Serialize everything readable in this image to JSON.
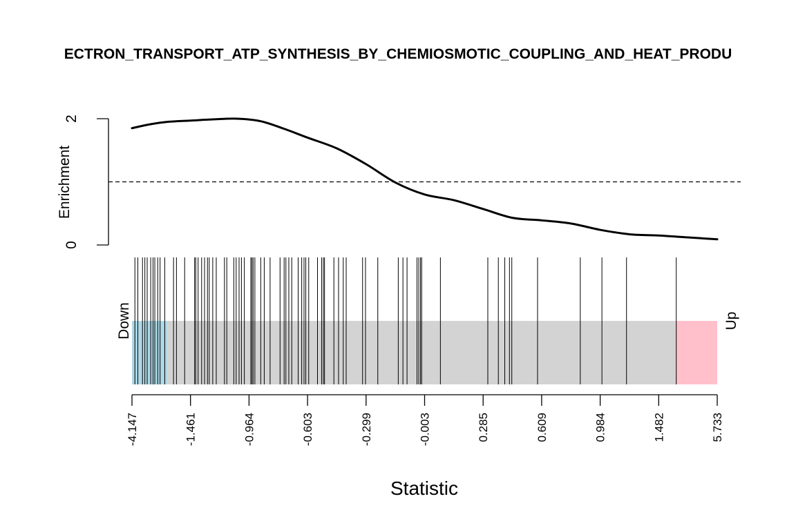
{
  "chart_data": {
    "type": "barcode",
    "title": "ECTRON_TRANSPORT_ATP_SYNTHESIS_BY_CHEMIOSMOTIC_COUPLING_AND_HEAT_PRODU",
    "xlabel": "Statistic",
    "ylabel": "Enrichment",
    "y_ticks": [
      "0",
      "2"
    ],
    "ylim": [
      0,
      2
    ],
    "reference_line": 1,
    "x_ticks": [
      "-4.147",
      "-1.461",
      "-0.964",
      "-0.603",
      "-0.299",
      "-0.003",
      "0.285",
      "0.609",
      "0.984",
      "1.482",
      "5.733"
    ],
    "rank_range": [
      0,
      10
    ],
    "enrichment_curve": [
      {
        "x": 0.0,
        "y": 1.85
      },
      {
        "x": 0.3,
        "y": 1.91
      },
      {
        "x": 0.6,
        "y": 1.95
      },
      {
        "x": 1.0,
        "y": 1.97
      },
      {
        "x": 1.4,
        "y": 1.99
      },
      {
        "x": 1.8,
        "y": 2.0
      },
      {
        "x": 2.2,
        "y": 1.96
      },
      {
        "x": 2.6,
        "y": 1.84
      },
      {
        "x": 3.0,
        "y": 1.7
      },
      {
        "x": 3.5,
        "y": 1.53
      },
      {
        "x": 4.0,
        "y": 1.28
      },
      {
        "x": 4.5,
        "y": 0.99
      },
      {
        "x": 5.0,
        "y": 0.8
      },
      {
        "x": 5.5,
        "y": 0.71
      },
      {
        "x": 6.0,
        "y": 0.57
      },
      {
        "x": 6.5,
        "y": 0.43
      },
      {
        "x": 7.0,
        "y": 0.39
      },
      {
        "x": 7.5,
        "y": 0.34
      },
      {
        "x": 8.0,
        "y": 0.24
      },
      {
        "x": 8.5,
        "y": 0.17
      },
      {
        "x": 9.0,
        "y": 0.15
      },
      {
        "x": 9.5,
        "y": 0.12
      },
      {
        "x": 10.0,
        "y": 0.09
      }
    ],
    "gene_positions": [
      0.05,
      0.1,
      0.18,
      0.22,
      0.26,
      0.32,
      0.36,
      0.39,
      0.44,
      0.48,
      0.56,
      0.71,
      0.76,
      0.9,
      1.07,
      1.09,
      1.13,
      1.19,
      1.24,
      1.29,
      1.32,
      1.38,
      1.44,
      1.58,
      1.62,
      1.74,
      1.78,
      1.83,
      1.87,
      1.92,
      2.03,
      2.05,
      2.07,
      2.1,
      2.2,
      2.26,
      2.36,
      2.53,
      2.6,
      2.63,
      2.68,
      2.73,
      2.84,
      2.9,
      2.94,
      2.97,
      3.02,
      3.17,
      3.24,
      3.27,
      3.29,
      3.45,
      3.53,
      3.61,
      3.66,
      3.94,
      3.99,
      4.2,
      4.55,
      4.63,
      4.7,
      4.87,
      4.9,
      4.93,
      4.95,
      5.27,
      6.08,
      6.26,
      6.37,
      6.45,
      6.49,
      6.93,
      7.66,
      8.03,
      8.45,
      9.3
    ],
    "regions": [
      {
        "name": "Down",
        "from": 0,
        "to": 0.6,
        "color": "#add8e6"
      },
      {
        "name": "",
        "from": 0.6,
        "to": 9.3,
        "color": "#d3d3d3"
      },
      {
        "name": "Up",
        "from": 9.3,
        "to": 10,
        "color": "#ffc0cb"
      }
    ],
    "grid": false,
    "legend": "none"
  }
}
